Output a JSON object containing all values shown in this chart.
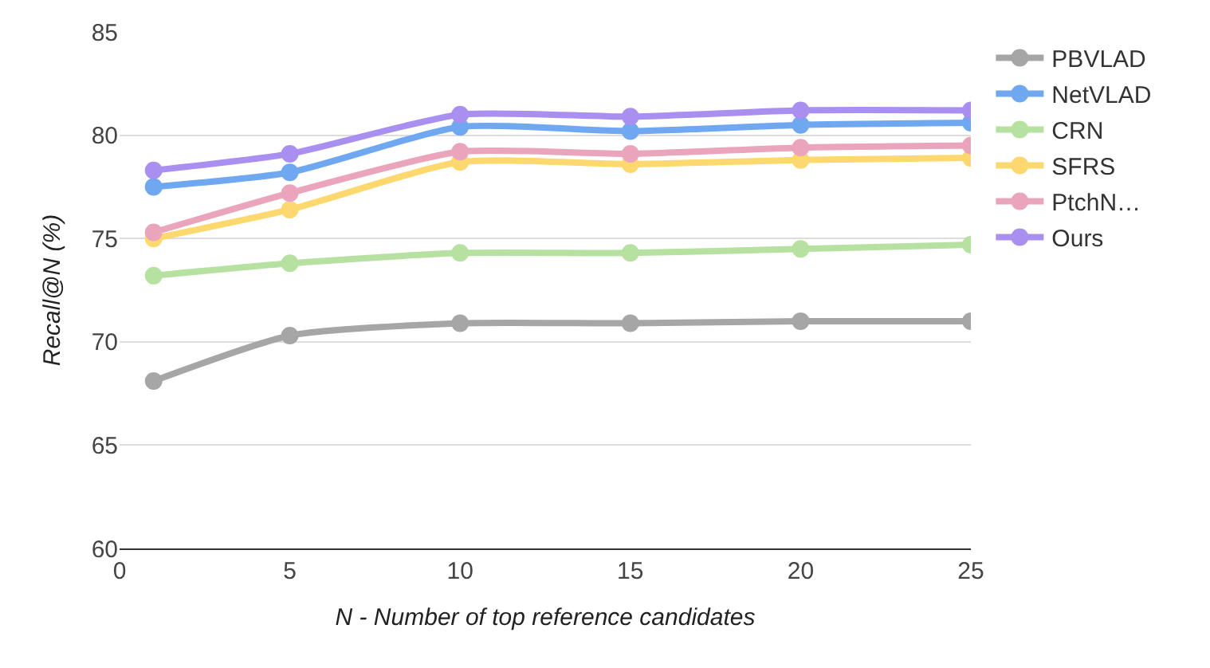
{
  "chart_data": {
    "type": "line",
    "xlabel": "N - Number of top reference candidates",
    "ylabel": "Recall@N (%)",
    "x": [
      1,
      5,
      10,
      15,
      20,
      25
    ],
    "series": [
      {
        "name": "PBVLAD",
        "color": "#a6a6a6",
        "values": [
          68.1,
          70.3,
          70.9,
          70.9,
          71.0,
          71.0
        ]
      },
      {
        "name": "NetVLAD",
        "color": "#6fa8f0",
        "values": [
          77.5,
          78.2,
          80.4,
          80.2,
          80.5,
          80.6
        ]
      },
      {
        "name": "CRN",
        "color": "#b7e1a1",
        "values": [
          73.2,
          73.8,
          74.3,
          74.3,
          74.5,
          74.7
        ]
      },
      {
        "name": "SFRS",
        "color": "#fcd86e",
        "values": [
          75.0,
          76.4,
          78.7,
          78.6,
          78.8,
          78.9
        ]
      },
      {
        "name": "PtchN…",
        "color": "#eaa5bd",
        "values": [
          75.3,
          77.2,
          79.2,
          79.1,
          79.4,
          79.5
        ]
      },
      {
        "name": "Ours",
        "color": "#a98ff0",
        "values": [
          78.3,
          79.1,
          81.0,
          80.9,
          81.2,
          81.2
        ]
      }
    ],
    "xlim": [
      0,
      25
    ],
    "xticks": [
      0,
      5,
      10,
      15,
      20,
      25
    ],
    "ylim": [
      60,
      85
    ],
    "yticks": [
      60,
      65,
      70,
      75,
      80,
      85
    ],
    "grid": "y",
    "legend": "right",
    "marker": "circle",
    "line_style": "solid"
  }
}
